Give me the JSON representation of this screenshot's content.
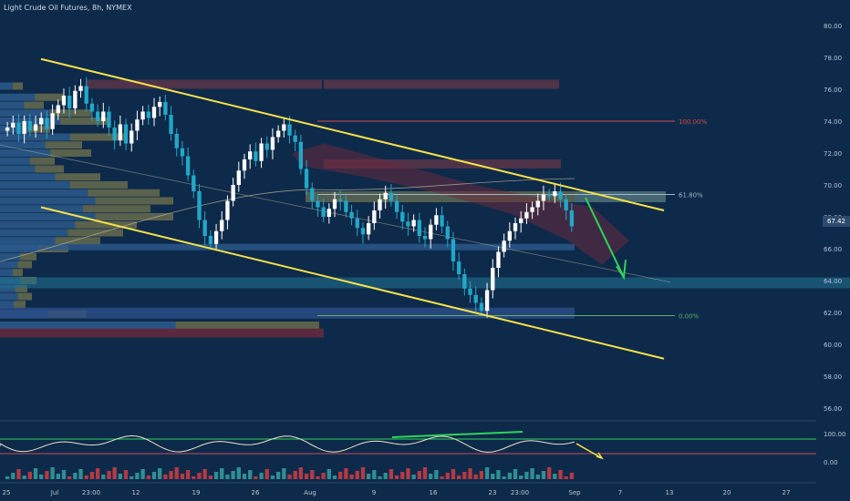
{
  "title": "Light Crude Oil Futures, 8h, NYMEX",
  "colors": {
    "bg": "#0e2a4a",
    "up": "#ffffff",
    "down": "#22a7c7",
    "trend": "#f5e14a",
    "arrow": "#2fd45c",
    "fib_top": "#d24a4a",
    "fib_mid": "#9fb7c9",
    "fib_low": "#5fae6a",
    "vol_up": "#2f8f92",
    "vol_down": "#b43a45",
    "osc": "#e8e0c8",
    "osc_low": "#c94a58",
    "osc_high": "#2fd45c"
  },
  "price_badge": "67.42",
  "chart_data": {
    "type": "candlestick",
    "ylim": [
      56,
      80
    ],
    "y_ticks": [
      "80.00",
      "78.00",
      "76.00",
      "74.00",
      "72.00",
      "70.00",
      "68.00",
      "66.00",
      "64.00",
      "62.00",
      "60.00",
      "58.00",
      "56.00"
    ],
    "y_tick_values": [
      80,
      78,
      76,
      74,
      72,
      70,
      68,
      66,
      64,
      62,
      60,
      58,
      56
    ],
    "x_labels": [
      "25",
      "Jul",
      "23:00",
      "12",
      "19",
      "26",
      "Aug",
      "9",
      "16",
      "23",
      "23:00",
      "Sep",
      "7",
      "13",
      "20",
      "27"
    ],
    "fib_levels": [
      {
        "label": "100.00%",
        "value": 74.0
      },
      {
        "label": "61.80%",
        "value": 69.4
      },
      {
        "label": "0.00%",
        "value": 61.8
      }
    ],
    "oscillator": {
      "ticks": [
        "100.00"
      ],
      "values": [
        100
      ]
    },
    "volume_ticks": [
      "0.00"
    ],
    "closes": [
      73.6,
      73.9,
      73.2,
      74.0,
      73.4,
      73.8,
      74.2,
      73.5,
      74.5,
      75.0,
      75.6,
      74.8,
      75.9,
      76.2,
      75.1,
      74.6,
      74.0,
      74.6,
      73.6,
      72.8,
      73.8,
      72.6,
      73.4,
      74.1,
      74.6,
      74.2,
      74.9,
      75.2,
      74.4,
      73.2,
      72.3,
      71.8,
      70.6,
      69.6,
      67.8,
      66.8,
      66.3,
      67.1,
      67.8,
      69.0,
      70.0,
      70.9,
      71.6,
      72.1,
      71.5,
      72.6,
      72.2,
      73.0,
      73.4,
      73.8,
      73.1,
      72.7,
      71.0,
      69.8,
      69.0,
      68.6,
      68.0,
      68.5,
      69.1,
      69.0,
      68.3,
      67.9,
      67.3,
      66.9,
      67.6,
      68.4,
      69.1,
      69.5,
      69.0,
      68.3,
      67.7,
      67.4,
      67.8,
      66.8,
      66.6,
      67.5,
      68.1,
      67.4,
      66.6,
      65.2,
      64.4,
      63.5,
      63.1,
      62.6,
      62.1,
      63.4,
      64.8,
      65.8,
      66.5,
      67.1,
      67.6,
      67.9,
      68.3,
      68.6,
      69.0,
      69.4,
      69.3,
      69.6,
      69.1,
      68.4,
      67.4
    ]
  }
}
